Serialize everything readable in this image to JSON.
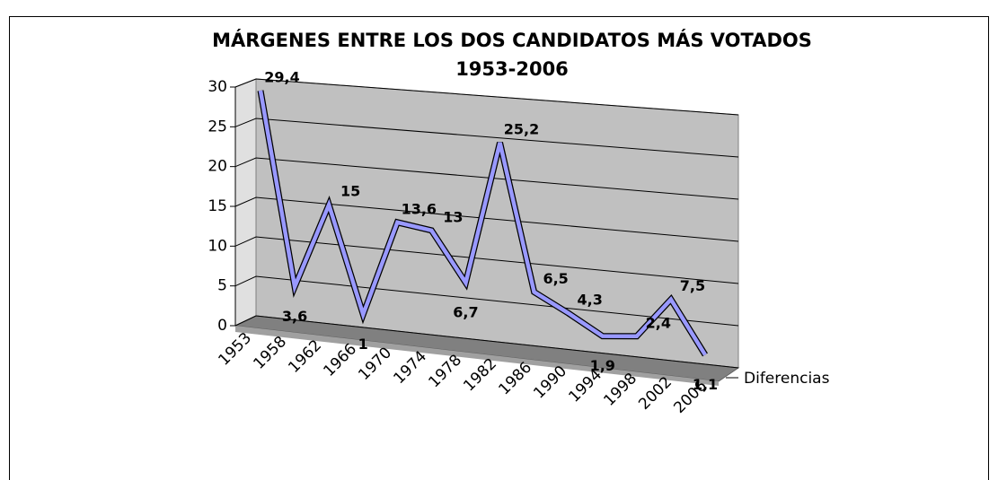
{
  "chart_data": {
    "type": "line3d",
    "title": "MÁRGENES ENTRE LOS DOS CANDIDATOS MÁS VOTADOS",
    "subtitle": "1953-2006",
    "categories": [
      "1953",
      "1958",
      "1962",
      "1966",
      "1970",
      "1974",
      "1978",
      "1982",
      "1986",
      "1990",
      "1994",
      "1998",
      "2002",
      "2006"
    ],
    "series": [
      {
        "name": "Diferencias",
        "color": "#9999ff",
        "values": [
          29.4,
          3.6,
          15,
          1,
          13.6,
          13,
          6.7,
          25.2,
          6.5,
          4.3,
          1.9,
          2.4,
          7.5,
          1.1
        ],
        "value_labels": [
          "29,4",
          "3,6",
          "15",
          "1",
          "13,6",
          "13",
          "6,7",
          "25,2",
          "6,5",
          "4,3",
          "1,9",
          "2,4",
          "7,5",
          "1,1"
        ]
      }
    ],
    "ylim": [
      0,
      30
    ],
    "yticks": [
      0,
      5,
      10,
      15,
      20,
      25,
      30
    ],
    "grid": true,
    "legend": "right"
  }
}
